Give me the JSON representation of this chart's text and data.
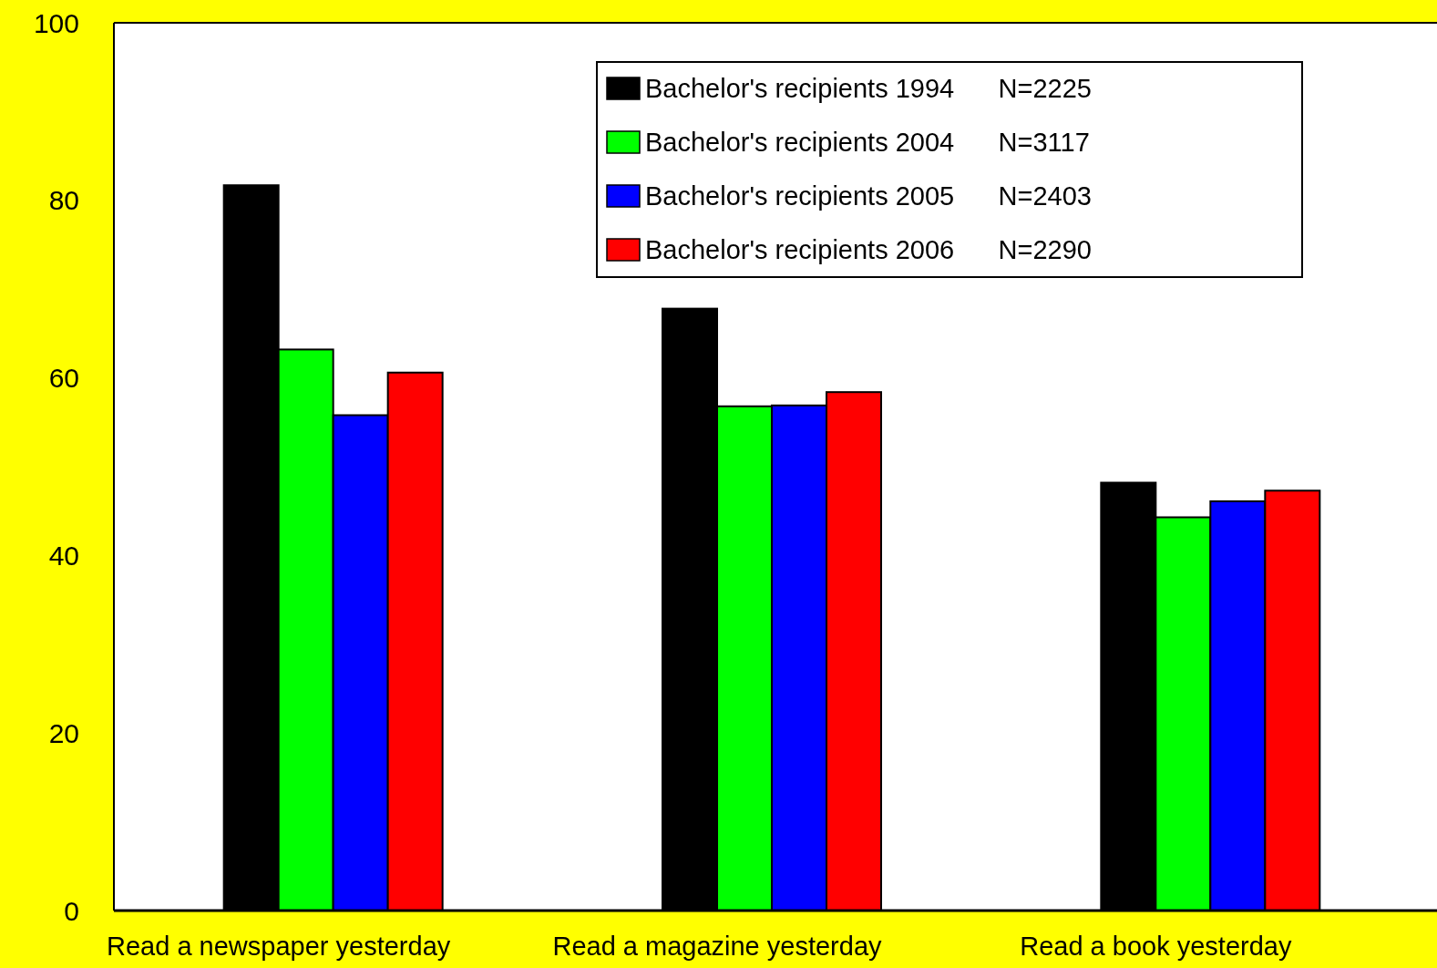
{
  "chart_data": {
    "type": "bar",
    "categories": [
      "Read a newspaper yesterday",
      "Read a magazine yesterday",
      "Read a book yesterday"
    ],
    "series": [
      {
        "name": "Bachelor's recipients 1994      N=2225",
        "color": "#000000",
        "values": [
          81.7,
          67.8,
          48.2
        ]
      },
      {
        "name": "Bachelor's recipients 2004      N=3117",
        "color": "#00ff00",
        "values": [
          63.2,
          56.8,
          44.3
        ]
      },
      {
        "name": "Bachelor's recipients 2005      N=2403",
        "color": "#0000ff",
        "values": [
          55.8,
          56.9,
          46.1
        ]
      },
      {
        "name": "Bachelor's recipients 2006      N=2290",
        "color": "#ff0000",
        "values": [
          60.6,
          58.4,
          47.3
        ]
      }
    ],
    "ylim": [
      0,
      100
    ],
    "yticks": [
      0,
      20,
      40,
      60,
      80,
      100
    ],
    "grid": false,
    "legend": "top right"
  }
}
